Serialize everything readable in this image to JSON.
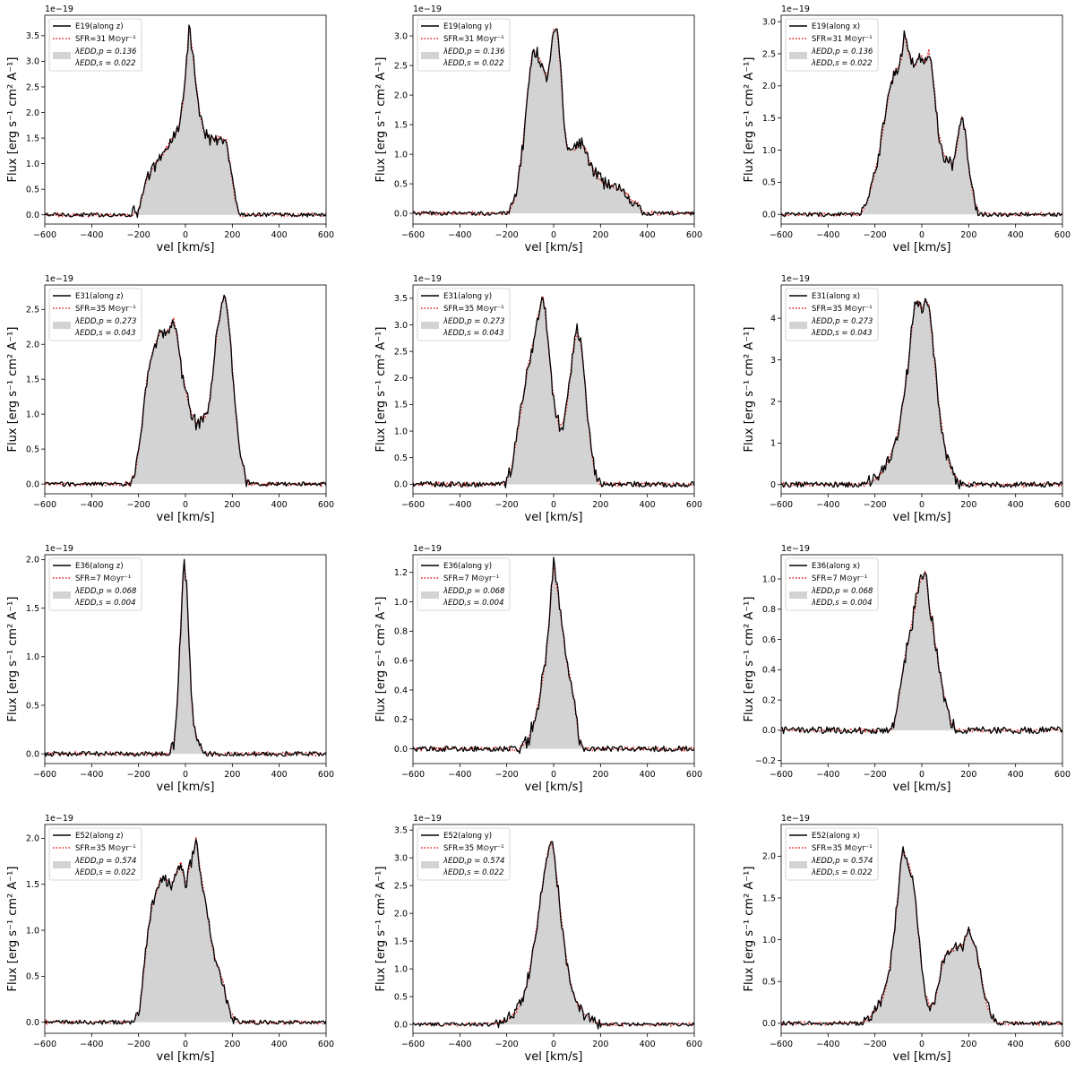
{
  "figure": {
    "common": {
      "xlabel": "vel [km/s]",
      "ylabel": "Flux [erg s⁻¹ cm² A⁻¹]",
      "offset_text": "1e−19",
      "xlim": [
        -600,
        600
      ],
      "xticks": [
        -600,
        -400,
        -200,
        0,
        200,
        400,
        600
      ],
      "colors": {
        "line": "#000000",
        "fit": "#e41a1c",
        "fill": "#d3d3d3",
        "frame": "#000000"
      }
    }
  },
  "chart_data": [
    {
      "type": "line",
      "legend": {
        "line": "E19(along z)",
        "fit": "SFR=31 M⊙yr⁻¹",
        "fill_1": "λEDD,p = 0.136",
        "fill_2": "λEDD,s = 0.022"
      },
      "ylim": [
        -0.18,
        3.9
      ],
      "yticks": [
        0.0,
        0.5,
        1.0,
        1.5,
        2.0,
        2.5,
        3.0,
        3.5
      ],
      "profile": [
        [
          -230,
          0
        ],
        [
          -200,
          0.1
        ],
        [
          -170,
          0.6
        ],
        [
          -140,
          0.9
        ],
        [
          -110,
          1.1
        ],
        [
          -80,
          1.3
        ],
        [
          -50,
          1.55
        ],
        [
          -30,
          1.7
        ],
        [
          -10,
          2.2
        ],
        [
          5,
          3.0
        ],
        [
          15,
          3.65
        ],
        [
          30,
          3.2
        ],
        [
          45,
          2.6
        ],
        [
          60,
          2.0
        ],
        [
          80,
          1.6
        ],
        [
          100,
          1.5
        ],
        [
          130,
          1.5
        ],
        [
          160,
          1.5
        ],
        [
          175,
          1.45
        ],
        [
          190,
          1.0
        ],
        [
          210,
          0.35
        ],
        [
          230,
          0
        ]
      ],
      "noise": 0.03
    },
    {
      "type": "line",
      "legend": {
        "line": "E19(along y)",
        "fit": "SFR=31 M⊙yr⁻¹",
        "fill_1": "λEDD,p = 0.136",
        "fill_2": "λEDD,s = 0.022"
      },
      "ylim": [
        -0.18,
        3.35
      ],
      "yticks": [
        0.0,
        0.5,
        1.0,
        1.5,
        2.0,
        2.5,
        3.0
      ],
      "profile": [
        [
          -190,
          0
        ],
        [
          -160,
          0.3
        ],
        [
          -130,
          1.2
        ],
        [
          -110,
          2.1
        ],
        [
          -90,
          2.75
        ],
        [
          -70,
          2.7
        ],
        [
          -50,
          2.5
        ],
        [
          -30,
          2.3
        ],
        [
          -15,
          2.6
        ],
        [
          0,
          3.1
        ],
        [
          15,
          3.1
        ],
        [
          30,
          2.4
        ],
        [
          45,
          1.5
        ],
        [
          60,
          1.1
        ],
        [
          90,
          1.1
        ],
        [
          120,
          1.2
        ],
        [
          140,
          1.05
        ],
        [
          160,
          0.8
        ],
        [
          190,
          0.6
        ],
        [
          220,
          0.5
        ],
        [
          260,
          0.45
        ],
        [
          300,
          0.38
        ],
        [
          330,
          0.25
        ],
        [
          360,
          0.15
        ],
        [
          385,
          0
        ]
      ],
      "noise": 0.03
    },
    {
      "type": "line",
      "legend": {
        "line": "E19(along x)",
        "fit": "SFR=31 M⊙yr⁻¹",
        "fill_1": "λEDD,p = 0.136",
        "fill_2": "λEDD,s = 0.022"
      },
      "ylim": [
        -0.15,
        3.1
      ],
      "yticks": [
        0.0,
        0.5,
        1.0,
        1.5,
        2.0,
        2.5,
        3.0
      ],
      "profile": [
        [
          -260,
          0
        ],
        [
          -230,
          0.2
        ],
        [
          -210,
          0.5
        ],
        [
          -180,
          1.0
        ],
        [
          -160,
          1.45
        ],
        [
          -140,
          1.9
        ],
        [
          -120,
          2.2
        ],
        [
          -100,
          2.3
        ],
        [
          -85,
          2.45
        ],
        [
          -75,
          2.85
        ],
        [
          -65,
          2.6
        ],
        [
          -50,
          2.45
        ],
        [
          -30,
          2.3
        ],
        [
          -15,
          2.45
        ],
        [
          0,
          2.45
        ],
        [
          15,
          2.35
        ],
        [
          30,
          2.55
        ],
        [
          40,
          2.35
        ],
        [
          55,
          1.9
        ],
        [
          70,
          1.3
        ],
        [
          90,
          0.95
        ],
        [
          110,
          0.85
        ],
        [
          130,
          0.8
        ],
        [
          145,
          0.95
        ],
        [
          160,
          1.3
        ],
        [
          170,
          1.55
        ],
        [
          185,
          1.3
        ],
        [
          200,
          0.7
        ],
        [
          225,
          0.2
        ],
        [
          250,
          0
        ]
      ],
      "noise": 0.03
    },
    {
      "type": "line",
      "legend": {
        "line": "E31(along z)",
        "fit": "SFR=35 M⊙yr⁻¹",
        "fill_1": "λEDD,p = 0.273",
        "fill_2": "λEDD,s = 0.043"
      },
      "ylim": [
        -0.14,
        2.85
      ],
      "yticks": [
        0.0,
        0.5,
        1.0,
        1.5,
        2.0,
        2.5
      ],
      "profile": [
        [
          -240,
          0
        ],
        [
          -215,
          0.15
        ],
        [
          -195,
          0.6
        ],
        [
          -175,
          1.2
        ],
        [
          -160,
          1.6
        ],
        [
          -140,
          1.9
        ],
        [
          -120,
          2.1
        ],
        [
          -100,
          2.2
        ],
        [
          -80,
          2.15
        ],
        [
          -60,
          2.3
        ],
        [
          -50,
          2.35
        ],
        [
          -35,
          2.1
        ],
        [
          -15,
          1.6
        ],
        [
          5,
          1.3
        ],
        [
          25,
          1.0
        ],
        [
          50,
          0.85
        ],
        [
          75,
          0.95
        ],
        [
          95,
          1.0
        ],
        [
          115,
          1.5
        ],
        [
          135,
          2.2
        ],
        [
          155,
          2.6
        ],
        [
          168,
          2.7
        ],
        [
          180,
          2.5
        ],
        [
          195,
          1.9
        ],
        [
          215,
          1.0
        ],
        [
          235,
          0.4
        ],
        [
          260,
          0.05
        ],
        [
          275,
          0
        ]
      ],
      "noise": 0.03
    },
    {
      "type": "line",
      "legend": {
        "line": "E31(along y)",
        "fit": "SFR=35 M⊙yr⁻¹",
        "fill_1": "λEDD,p = 0.273",
        "fill_2": "λEDD,s = 0.043"
      },
      "ylim": [
        -0.18,
        3.75
      ],
      "yticks": [
        0.0,
        0.5,
        1.0,
        1.5,
        2.0,
        2.5,
        3.0,
        3.5
      ],
      "profile": [
        [
          -210,
          0
        ],
        [
          -185,
          0.2
        ],
        [
          -160,
          0.8
        ],
        [
          -135,
          1.5
        ],
        [
          -110,
          2.2
        ],
        [
          -90,
          2.6
        ],
        [
          -70,
          3.1
        ],
        [
          -55,
          3.4
        ],
        [
          -45,
          3.5
        ],
        [
          -35,
          3.2
        ],
        [
          -20,
          2.5
        ],
        [
          -5,
          1.8
        ],
        [
          10,
          1.3
        ],
        [
          25,
          1.1
        ],
        [
          40,
          1.15
        ],
        [
          55,
          1.4
        ],
        [
          70,
          2.0
        ],
        [
          85,
          2.6
        ],
        [
          100,
          2.9
        ],
        [
          115,
          2.7
        ],
        [
          130,
          2.1
        ],
        [
          145,
          1.3
        ],
        [
          165,
          0.5
        ],
        [
          185,
          0.1
        ],
        [
          200,
          0
        ]
      ],
      "noise": 0.04
    },
    {
      "type": "line",
      "legend": {
        "line": "E31(along x)",
        "fit": "SFR=35 M⊙yr⁻¹",
        "fill_1": "λEDD,p = 0.273",
        "fill_2": "λEDD,s = 0.043"
      },
      "ylim": [
        -0.22,
        4.8
      ],
      "yticks": [
        0,
        1,
        2,
        3,
        4
      ],
      "profile": [
        [
          -240,
          0
        ],
        [
          -200,
          0.1
        ],
        [
          -170,
          0.3
        ],
        [
          -140,
          0.6
        ],
        [
          -120,
          0.9
        ],
        [
          -100,
          1.3
        ],
        [
          -80,
          2.0
        ],
        [
          -60,
          2.8
        ],
        [
          -45,
          3.6
        ],
        [
          -30,
          4.3
        ],
        [
          -15,
          4.4
        ],
        [
          0,
          4.2
        ],
        [
          15,
          4.45
        ],
        [
          30,
          4.3
        ],
        [
          45,
          3.5
        ],
        [
          60,
          2.6
        ],
        [
          75,
          1.8
        ],
        [
          95,
          1.0
        ],
        [
          120,
          0.45
        ],
        [
          150,
          0.12
        ],
        [
          175,
          0
        ]
      ],
      "noise": 0.04
    },
    {
      "type": "line",
      "legend": {
        "line": "E36(along z)",
        "fit": "SFR=7 M⊙yr⁻¹",
        "fill_1": "λEDD,p = 0.068",
        "fill_2": "λEDD,s = 0.004"
      },
      "ylim": [
        -0.1,
        2.05
      ],
      "yticks": [
        0.0,
        0.5,
        1.0,
        1.5,
        2.0
      ],
      "profile": [
        [
          -70,
          0
        ],
        [
          -50,
          0.1
        ],
        [
          -35,
          0.5
        ],
        [
          -22,
          1.2
        ],
        [
          -12,
          1.75
        ],
        [
          -5,
          1.95
        ],
        [
          5,
          1.75
        ],
        [
          15,
          1.2
        ],
        [
          25,
          0.6
        ],
        [
          35,
          0.3
        ],
        [
          50,
          0.15
        ],
        [
          70,
          0.05
        ],
        [
          90,
          0
        ]
      ],
      "noise": 0.035
    },
    {
      "type": "line",
      "legend": {
        "line": "E36(along y)",
        "fit": "SFR=7 M⊙yr⁻¹",
        "fill_1": "λEDD,p = 0.068",
        "fill_2": "λEDD,s = 0.004"
      },
      "ylim": [
        -0.1,
        1.32
      ],
      "yticks": [
        0.0,
        0.2,
        0.4,
        0.6,
        0.8,
        1.0,
        1.2
      ],
      "profile": [
        [
          -150,
          0
        ],
        [
          -110,
          0.05
        ],
        [
          -80,
          0.2
        ],
        [
          -55,
          0.4
        ],
        [
          -35,
          0.6
        ],
        [
          -20,
          0.85
        ],
        [
          -8,
          1.1
        ],
        [
          0,
          1.25
        ],
        [
          8,
          1.15
        ],
        [
          20,
          1.05
        ],
        [
          35,
          0.85
        ],
        [
          55,
          0.6
        ],
        [
          75,
          0.45
        ],
        [
          90,
          0.3
        ],
        [
          110,
          0.05
        ],
        [
          130,
          0
        ]
      ],
      "noise": 0.04
    },
    {
      "type": "line",
      "legend": {
        "line": "E36(along x)",
        "fit": "SFR=7 M⊙yr⁻¹",
        "fill_1": "λEDD,p = 0.068",
        "fill_2": "λEDD,s = 0.004"
      },
      "ylim": [
        -0.22,
        1.16
      ],
      "yticks": [
        -0.2,
        0.0,
        0.2,
        0.4,
        0.6,
        0.8,
        1.0
      ],
      "profile": [
        [
          -130,
          0
        ],
        [
          -110,
          0.1
        ],
        [
          -90,
          0.3
        ],
        [
          -70,
          0.5
        ],
        [
          -50,
          0.65
        ],
        [
          -30,
          0.8
        ],
        [
          -15,
          0.95
        ],
        [
          0,
          1.0
        ],
        [
          15,
          1.05
        ],
        [
          30,
          0.85
        ],
        [
          45,
          0.7
        ],
        [
          60,
          0.55
        ],
        [
          80,
          0.35
        ],
        [
          100,
          0.2
        ],
        [
          125,
          0.05
        ],
        [
          145,
          0
        ]
      ],
      "noise": 0.05
    },
    {
      "type": "line",
      "legend": {
        "line": "E52(along z)",
        "fit": "SFR=35 M⊙yr⁻¹",
        "fill_1": "λEDD,p = 0.574",
        "fill_2": "λEDD,s = 0.022"
      },
      "ylim": [
        -0.12,
        2.15
      ],
      "yticks": [
        0.0,
        0.5,
        1.0,
        1.5,
        2.0
      ],
      "profile": [
        [
          -220,
          0
        ],
        [
          -195,
          0.15
        ],
        [
          -175,
          0.6
        ],
        [
          -160,
          1.0
        ],
        [
          -140,
          1.3
        ],
        [
          -120,
          1.45
        ],
        [
          -100,
          1.6
        ],
        [
          -80,
          1.55
        ],
        [
          -60,
          1.5
        ],
        [
          -40,
          1.6
        ],
        [
          -20,
          1.75
        ],
        [
          0,
          1.5
        ],
        [
          20,
          1.7
        ],
        [
          35,
          1.85
        ],
        [
          45,
          2.0
        ],
        [
          60,
          1.7
        ],
        [
          80,
          1.4
        ],
        [
          100,
          1.05
        ],
        [
          120,
          0.75
        ],
        [
          140,
          0.6
        ],
        [
          160,
          0.45
        ],
        [
          180,
          0.2
        ],
        [
          205,
          0.05
        ],
        [
          225,
          0
        ]
      ],
      "noise": 0.03
    },
    {
      "type": "line",
      "legend": {
        "line": "E52(along y)",
        "fit": "SFR=35 M⊙yr⁻¹",
        "fill_1": "λEDD,p = 0.574",
        "fill_2": "λEDD,s = 0.022"
      },
      "ylim": [
        -0.16,
        3.6
      ],
      "yticks": [
        0.0,
        0.5,
        1.0,
        1.5,
        2.0,
        2.5,
        3.0,
        3.5
      ],
      "profile": [
        [
          -250,
          0
        ],
        [
          -200,
          0.08
        ],
        [
          -160,
          0.2
        ],
        [
          -130,
          0.5
        ],
        [
          -110,
          0.8
        ],
        [
          -90,
          1.3
        ],
        [
          -70,
          1.8
        ],
        [
          -55,
          2.3
        ],
        [
          -40,
          2.7
        ],
        [
          -25,
          3.1
        ],
        [
          -10,
          3.3
        ],
        [
          0,
          3.1
        ],
        [
          15,
          2.6
        ],
        [
          30,
          2.0
        ],
        [
          50,
          1.3
        ],
        [
          70,
          0.8
        ],
        [
          95,
          0.4
        ],
        [
          130,
          0.2
        ],
        [
          175,
          0.05
        ],
        [
          210,
          0
        ]
      ],
      "noise": 0.025
    },
    {
      "type": "line",
      "legend": {
        "line": "E52(along x)",
        "fit": "SFR=35 M⊙yr⁻¹",
        "fill_1": "λEDD,p = 0.574",
        "fill_2": "λEDD,s = 0.022"
      },
      "ylim": [
        -0.12,
        2.38
      ],
      "yticks": [
        0.0,
        0.5,
        1.0,
        1.5,
        2.0
      ],
      "profile": [
        [
          -250,
          0
        ],
        [
          -200,
          0.15
        ],
        [
          -160,
          0.35
        ],
        [
          -135,
          0.7
        ],
        [
          -115,
          1.15
        ],
        [
          -100,
          1.6
        ],
        [
          -90,
          1.9
        ],
        [
          -80,
          2.1
        ],
        [
          -70,
          2.0
        ],
        [
          -55,
          1.9
        ],
        [
          -40,
          1.75
        ],
        [
          -30,
          1.55
        ],
        [
          -15,
          1.1
        ],
        [
          0,
          0.65
        ],
        [
          15,
          0.35
        ],
        [
          35,
          0.2
        ],
        [
          55,
          0.25
        ],
        [
          70,
          0.45
        ],
        [
          90,
          0.75
        ],
        [
          110,
          0.85
        ],
        [
          150,
          0.9
        ],
        [
          180,
          0.95
        ],
        [
          200,
          1.15
        ],
        [
          215,
          1.0
        ],
        [
          235,
          0.85
        ],
        [
          255,
          0.55
        ],
        [
          275,
          0.25
        ],
        [
          300,
          0.05
        ],
        [
          325,
          0
        ]
      ],
      "noise": 0.03
    }
  ]
}
